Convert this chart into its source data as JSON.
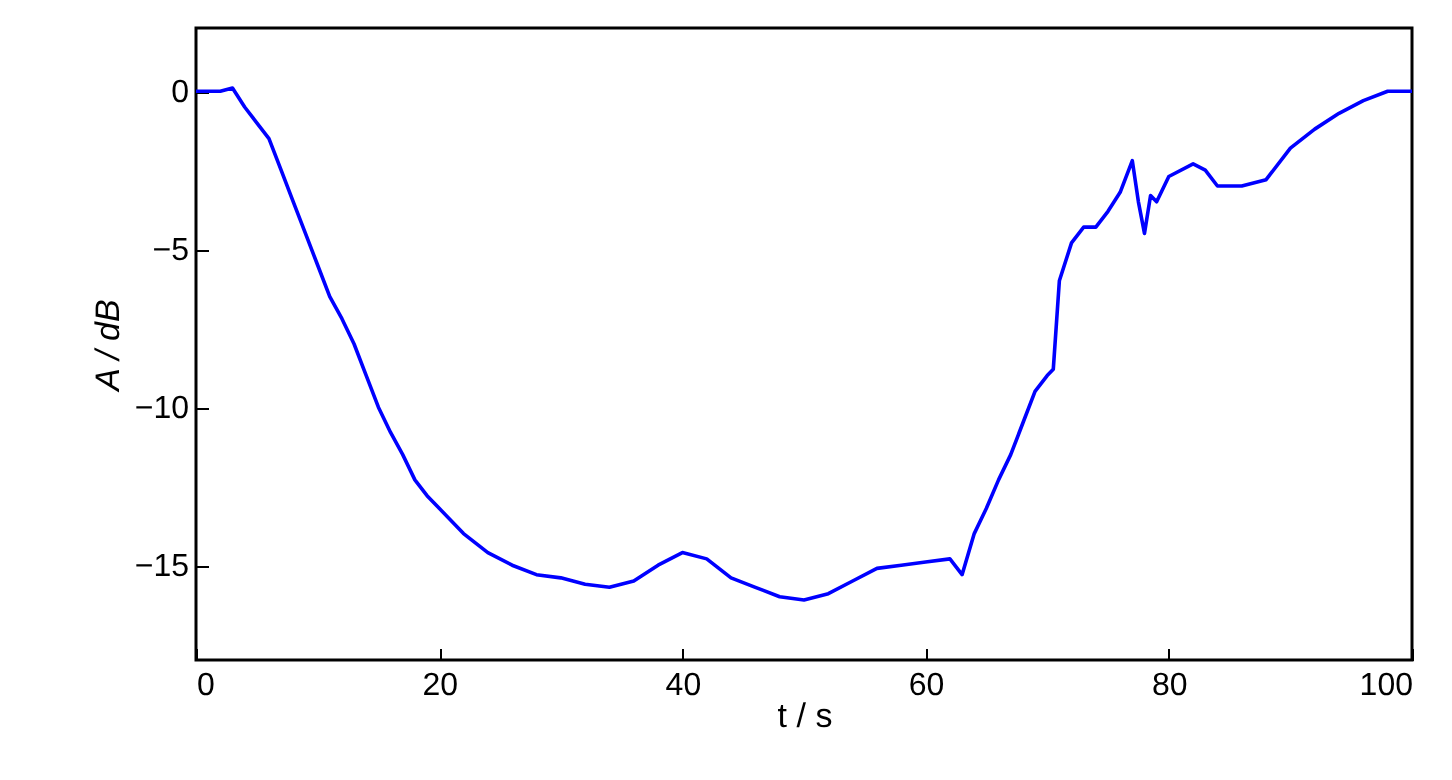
{
  "chart_data": {
    "type": "line",
    "xlabel": "t / s",
    "ylabel": "A / dB",
    "grid": false,
    "line_style": "solid",
    "xlim": [
      0,
      100
    ],
    "ylim": [
      -18,
      2
    ],
    "xticks": [
      0,
      20,
      40,
      60,
      80,
      100
    ],
    "yticks": [
      -15,
      -10,
      -5,
      0
    ],
    "x": [
      0,
      2,
      3,
      4,
      5,
      6,
      7,
      8,
      9,
      10,
      11,
      12,
      13,
      14,
      15,
      16,
      17,
      18,
      19,
      20,
      22,
      24,
      26,
      28,
      30,
      32,
      34,
      36,
      38,
      40,
      42,
      44,
      46,
      48,
      50,
      52,
      54,
      56,
      58,
      60,
      62,
      63,
      64,
      65,
      66,
      67,
      68,
      69,
      70,
      70.5,
      71,
      72,
      73,
      74,
      75,
      76,
      77,
      77.5,
      78,
      78.5,
      79,
      80,
      82,
      83,
      84,
      86,
      88,
      90,
      92,
      94,
      96,
      98,
      100
    ],
    "series": [
      {
        "color": "#0000ff",
        "values": [
          0,
          0,
          0.1,
          -0.5,
          -1,
          -1.5,
          -2.5,
          -3.5,
          -4.5,
          -5.5,
          -6.5,
          -7.2,
          -8,
          -9,
          -10,
          -10.8,
          -11.5,
          -12.3,
          -12.8,
          -13.2,
          -14,
          -14.6,
          -15,
          -15.3,
          -15.4,
          -15.6,
          -15.7,
          -15.5,
          -15,
          -14.6,
          -14.8,
          -15.4,
          -15.7,
          -16,
          -16.1,
          -15.9,
          -15.5,
          -15.1,
          -15,
          -14.9,
          -14.8,
          -15.3,
          -14,
          -13.2,
          -12.3,
          -11.5,
          -10.5,
          -9.5,
          -9,
          -8.8,
          -6,
          -4.8,
          -4.3,
          -4.3,
          -3.8,
          -3.2,
          -2.2,
          -3.5,
          -4.5,
          -3.3,
          -3.5,
          -2.7,
          -2.3,
          -2.5,
          -3,
          -3,
          -2.8,
          -1.8,
          -1.2,
          -0.7,
          -0.3,
          0,
          0
        ]
      }
    ]
  }
}
